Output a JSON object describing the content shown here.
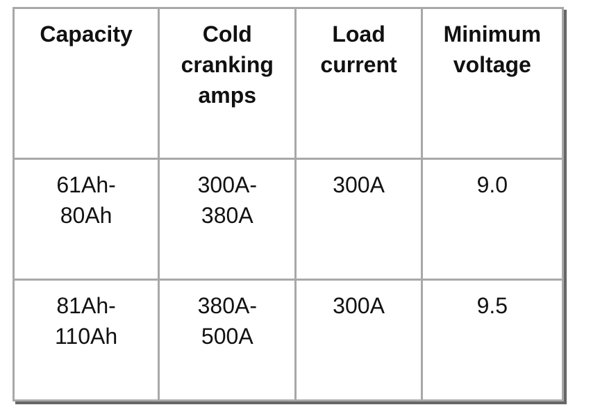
{
  "table": {
    "header": [
      "Capacity",
      "Cold\ncranking\namps",
      "Load\ncurrent",
      "Minimum\nvoltage"
    ],
    "rows": [
      [
        "61Ah-\n80Ah",
        "300A-\n380A",
        "300A",
        "9.0"
      ],
      [
        "81Ah-\n110Ah",
        "380A-\n500A",
        "300A",
        "9.5"
      ]
    ]
  }
}
